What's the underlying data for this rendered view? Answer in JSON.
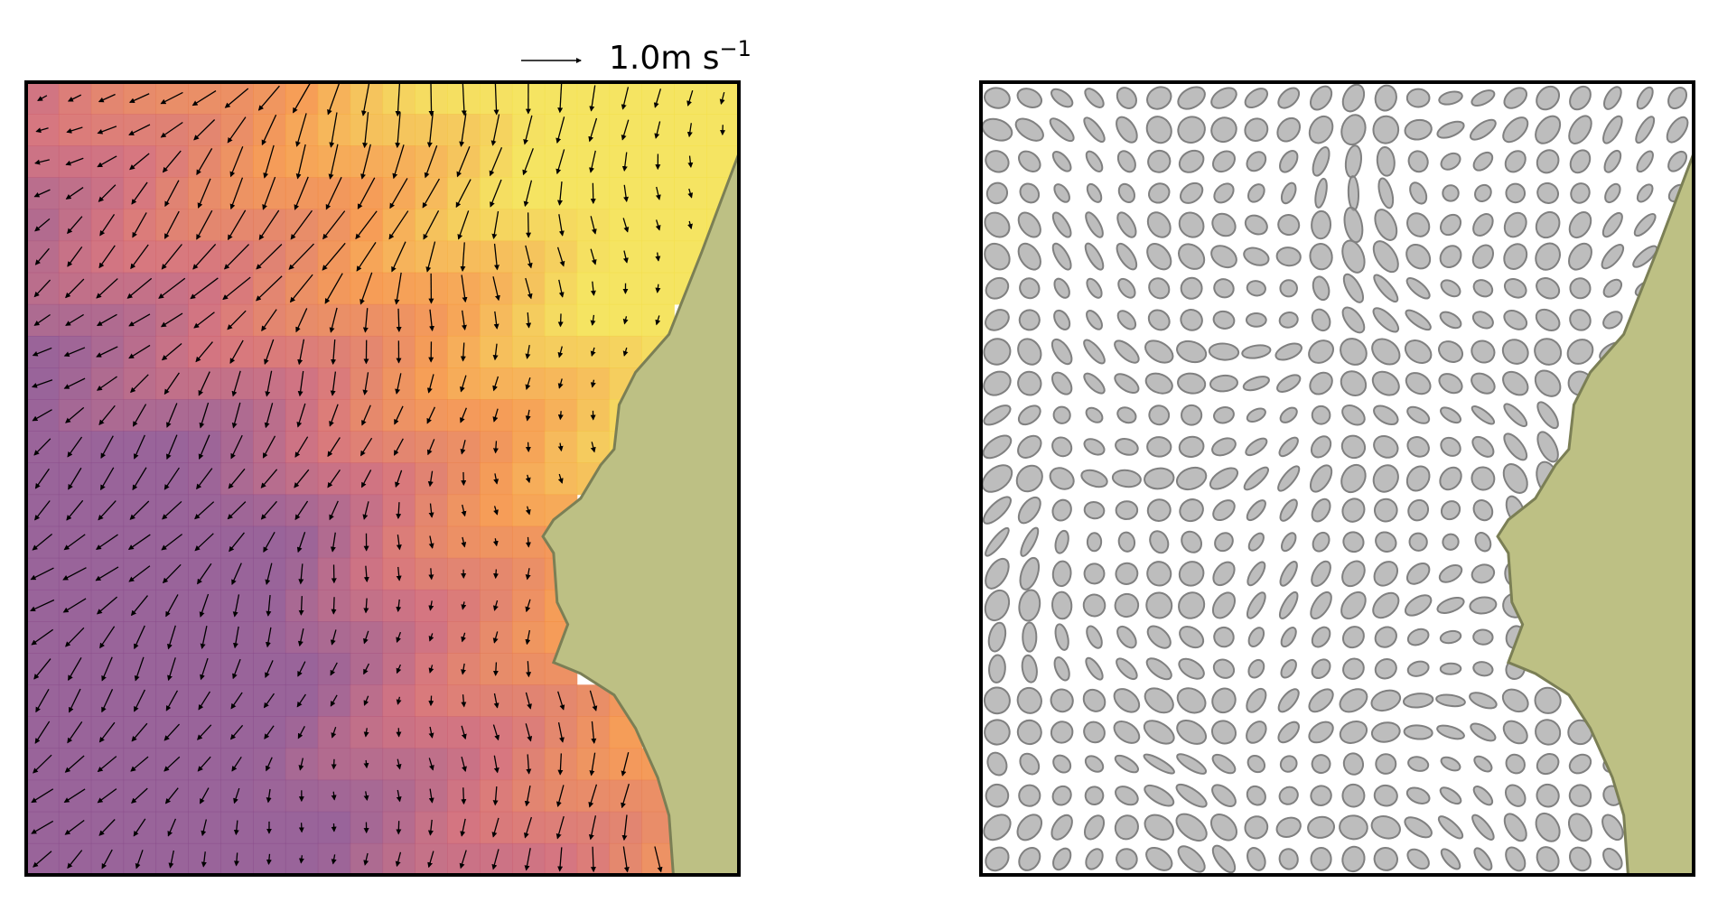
{
  "key_label": {
    "text": "1.0m s",
    "exponent": "−1"
  }
}
